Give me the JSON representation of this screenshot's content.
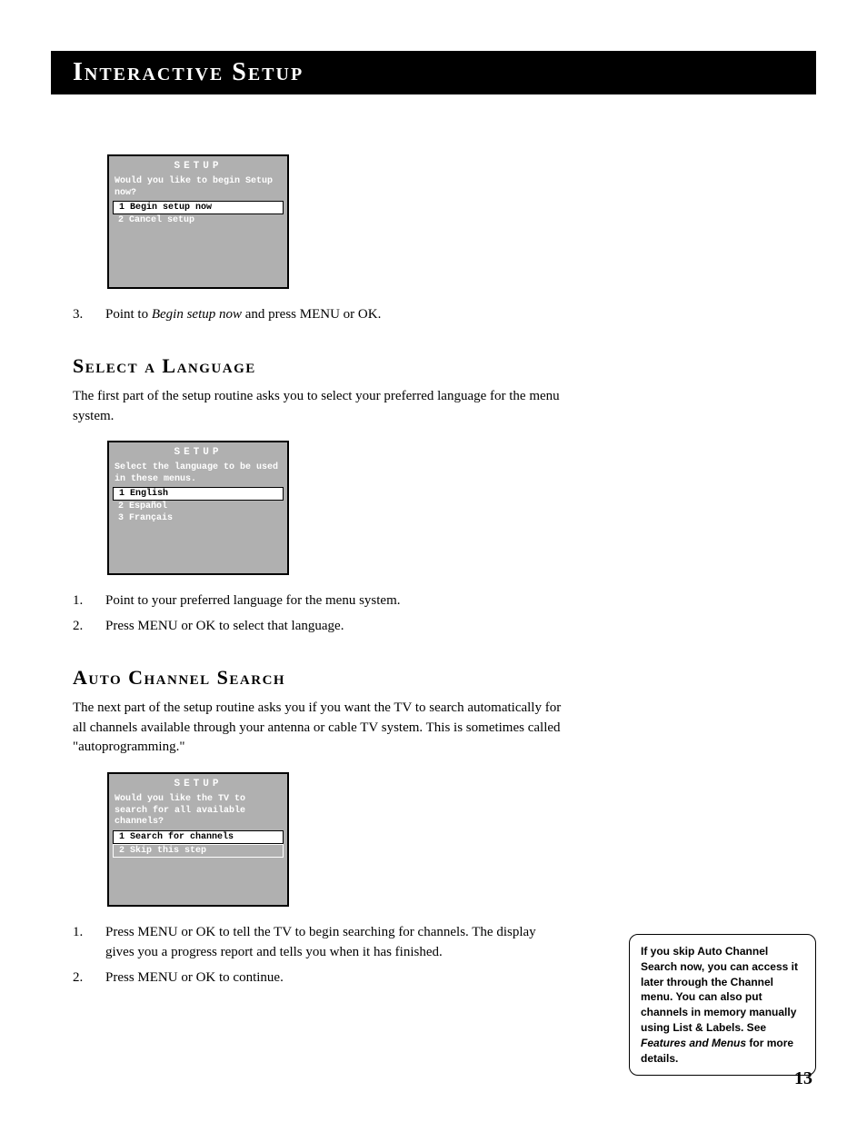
{
  "page": {
    "title": "Interactive Setup",
    "number": "13"
  },
  "menu1": {
    "title": "SETUP",
    "prompt": "Would you like to begin Setup now?",
    "opt1": "1 Begin setup now",
    "opt2": "2 Cancel setup",
    "colors": {
      "bg": "#b0b0b0",
      "text": "#ffffff",
      "selected_bg": "#ffffff",
      "selected_text": "#000000"
    }
  },
  "step_begin": {
    "num": "3.",
    "pre": "Point to ",
    "em": "Begin setup now",
    "post": " and press MENU or OK."
  },
  "lang": {
    "heading": "Select a Language",
    "body": "The first part of the setup routine asks you to select your preferred language for the menu system."
  },
  "menu2": {
    "title": "SETUP",
    "prompt": "Select the language to be used in these menus.",
    "opt1": "1 English",
    "opt2": "2 Español",
    "opt3": "3 Français"
  },
  "lang_steps": {
    "s1n": "1.",
    "s1": "Point to your preferred language for the menu system.",
    "s2n": "2.",
    "s2": "Press MENU or OK to select that language."
  },
  "auto": {
    "heading": "Auto Channel Search",
    "body": "The next part of the setup routine asks you if you want the TV to search automatically for all channels available through your antenna or cable TV system. This is sometimes called \"autoprogramming.\""
  },
  "menu3": {
    "title": "SETUP",
    "prompt": "Would you like the TV to search for all available channels?",
    "opt1": "1 Search for channels",
    "opt2": "2 Skip this step"
  },
  "auto_steps": {
    "s1n": "1.",
    "s1": "Press MENU or OK to tell the TV to begin searching for channels. The display gives you a progress report and tells you when it has finished.",
    "s2n": "2.",
    "s2": "Press MENU or OK to continue."
  },
  "note": {
    "pre": "If you skip Auto Channel Search now, you can access it later through the Channel menu. You can also put channels in memory manually using List & Labels. See ",
    "em": "Features and Menus",
    "post": " for more details."
  }
}
